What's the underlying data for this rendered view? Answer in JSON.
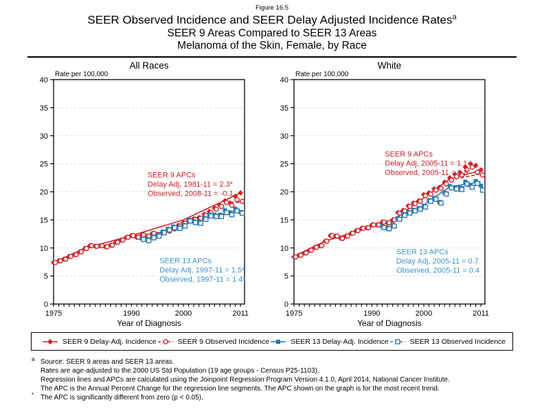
{
  "figure_label": "Figure 16.5",
  "title": {
    "line1": "SEER Observed Incidence and SEER Delay Adjusted Incidence Rates",
    "superscript": "a",
    "line2": "SEER 9 Areas Compared to SEER 13 Areas",
    "line3": "Melanoma of the Skin, Female, by Race"
  },
  "colors": {
    "seer9": "#CE2127",
    "seer13": "#2B77AE",
    "seer13_text": "#3D93C9",
    "grid": "#D9D9D9",
    "axis": "#000000"
  },
  "chart_data": [
    {
      "type": "scatter",
      "title": "All Races",
      "y_axis_label": "Rate per 100,000",
      "xlabel": "Year of Diagnosis",
      "ylim": [
        0,
        40
      ],
      "ytick_step": 5,
      "xrange": [
        1975,
        2011
      ],
      "xticks": [
        1975,
        1990,
        2000,
        2011
      ],
      "grid": "dashed-horizontal",
      "series": [
        {
          "name": "SEER 9 Delay-Adj. Incidence",
          "marker": "diamond-filled",
          "color_key": "seer9",
          "start_year": 1975,
          "values": [
            7.4,
            7.7,
            8.0,
            8.5,
            8.8,
            9.3,
            9.9,
            10.4,
            10.3,
            10.4,
            10.2,
            10.5,
            11.0,
            11.4,
            11.9,
            12.2,
            11.9,
            12.3,
            12.1,
            12.6,
            12.4,
            12.7,
            13.1,
            13.5,
            14.0,
            14.5,
            15.0,
            15.2,
            15.4,
            16.0,
            16.5,
            17.1,
            17.6,
            18.4,
            18.0,
            19.2,
            19.8
          ]
        },
        {
          "name": "SEER 9 Observed Incidence",
          "marker": "circle-open",
          "color_key": "seer9",
          "start_year": 1975,
          "values": [
            7.4,
            7.7,
            8.0,
            8.5,
            8.8,
            9.3,
            9.9,
            10.4,
            10.3,
            10.4,
            10.2,
            10.5,
            11.0,
            11.4,
            11.9,
            12.2,
            11.9,
            12.3,
            12.1,
            12.6,
            12.4,
            12.7,
            13.0,
            13.4,
            13.9,
            14.4,
            14.9,
            15.1,
            15.3,
            15.8,
            16.3,
            16.9,
            17.4,
            18.1,
            17.6,
            18.6,
            18.3
          ]
        },
        {
          "name": "SEER 13 Delay-Adj. Incidence",
          "marker": "square-filled",
          "color_key": "seer13",
          "start_year": 1992,
          "values": [
            11.7,
            11.5,
            12.0,
            12.3,
            12.9,
            13.4,
            13.8,
            13.7,
            14.1,
            15.0,
            14.7,
            14.6,
            15.3,
            16.0,
            15.9,
            15.9,
            16.7,
            16.3,
            17.0,
            16.4
          ]
        },
        {
          "name": "SEER 13 Observed Incidence",
          "marker": "square-open",
          "color_key": "seer13",
          "start_year": 1992,
          "values": [
            11.5,
            11.3,
            11.8,
            12.1,
            12.7,
            13.2,
            13.6,
            13.5,
            13.9,
            14.8,
            14.5,
            14.4,
            15.1,
            15.7,
            15.6,
            15.6,
            16.3,
            15.9,
            16.6,
            16.2
          ]
        }
      ],
      "trend_lines": [
        {
          "color_key": "seer9",
          "style": "solid",
          "points": [
            [
              1975,
              7.45
            ],
            [
              1981,
              9.9
            ],
            [
              1990,
              12.2
            ],
            [
              2000,
              15.0
            ],
            [
              2011,
              19.8
            ]
          ]
        },
        {
          "color_key": "seer9",
          "style": "dashed",
          "points": [
            [
              2008,
              18.2
            ],
            [
              2011,
              18.1
            ]
          ]
        },
        {
          "color_key": "seer13",
          "style": "solid",
          "points": [
            [
              1992,
              11.55
            ],
            [
              1997,
              13.3
            ],
            [
              2004,
              15.2
            ],
            [
              2011,
              16.5
            ]
          ]
        },
        {
          "color_key": "seer13",
          "style": "dashed",
          "points": [
            [
              2004,
              15.4
            ],
            [
              2011,
              16.8
            ]
          ]
        }
      ],
      "annotations": [
        {
          "color_key": "seer9",
          "anchor": [
            1993.1,
            23.7
          ],
          "lines": [
            "SEER 9 APCs",
            "Delay Adj, 1981-11 = 2.3*",
            "Observed, 2008-11 = -0.1"
          ]
        },
        {
          "color_key": "seer13_text",
          "anchor": [
            1995.4,
            8.4
          ],
          "lines": [
            "SEER 13 APCs",
            "Delay Adj, 1997-11 = 1.5*",
            "Observed, 1997-11 = 1.4*"
          ]
        }
      ]
    },
    {
      "type": "scatter",
      "title": "White",
      "y_axis_label": "Rate per 100,000",
      "xlabel": "Year of Diagnosis",
      "ylim": [
        0,
        40
      ],
      "ytick_step": 5,
      "xrange": [
        1975,
        2011
      ],
      "xticks": [
        1975,
        1990,
        2000,
        2011
      ],
      "grid": "dashed-horizontal",
      "series": [
        {
          "name": "SEER 9 Delay-Adj. Incidence",
          "marker": "diamond-filled",
          "color_key": "seer9",
          "start_year": 1975,
          "values": [
            8.4,
            8.7,
            9.1,
            9.6,
            10.1,
            10.4,
            11.2,
            12.2,
            12.1,
            11.7,
            12.1,
            12.6,
            13.1,
            13.5,
            13.6,
            14.1,
            14.1,
            14.6,
            14.5,
            15.0,
            16.3,
            16.7,
            17.5,
            18.0,
            18.4,
            19.5,
            19.8,
            20.5,
            20.8,
            21.7,
            22.5,
            23.1,
            23.4,
            24.4,
            25.0,
            24.7,
            23.9
          ]
        },
        {
          "name": "SEER 9 Observed Incidence",
          "marker": "circle-open",
          "color_key": "seer9",
          "start_year": 1975,
          "values": [
            8.4,
            8.7,
            9.1,
            9.6,
            10.1,
            10.4,
            11.2,
            12.2,
            12.1,
            11.7,
            12.1,
            12.6,
            13.1,
            13.5,
            13.6,
            14.1,
            14.1,
            14.6,
            14.5,
            15.0,
            16.2,
            16.6,
            17.4,
            17.9,
            18.3,
            19.3,
            19.6,
            20.3,
            20.6,
            21.4,
            22.1,
            22.7,
            23.0,
            23.9,
            24.4,
            23.5,
            23.0
          ]
        },
        {
          "name": "SEER 13 Delay-Adj. Incidence",
          "marker": "square-filled",
          "color_key": "seer13",
          "start_year": 1992,
          "values": [
            13.8,
            13.6,
            14.1,
            15.3,
            16.0,
            16.4,
            16.8,
            17.1,
            17.5,
            18.5,
            18.9,
            18.2,
            19.8,
            21.0,
            20.8,
            20.7,
            21.8,
            21.2,
            21.9,
            21.1
          ]
        },
        {
          "name": "SEER 13 Observed Incidence",
          "marker": "square-open",
          "color_key": "seer13",
          "start_year": 1992,
          "values": [
            13.6,
            13.4,
            13.9,
            15.1,
            15.8,
            16.2,
            16.6,
            16.9,
            17.3,
            18.3,
            18.7,
            18.0,
            19.6,
            20.7,
            20.5,
            20.4,
            21.4,
            20.8,
            21.5,
            20.3
          ]
        }
      ],
      "trend_lines": [
        {
          "color_key": "seer9",
          "style": "solid",
          "points": [
            [
              1975,
              8.5
            ],
            [
              1981,
              11.2
            ],
            [
              1994,
              14.9
            ],
            [
              2005,
              22.3
            ],
            [
              2011,
              23.8
            ]
          ]
        },
        {
          "color_key": "seer9",
          "style": "dashed",
          "points": [
            [
              2005,
              22.1
            ],
            [
              2011,
              23.2
            ]
          ]
        },
        {
          "color_key": "seer13",
          "style": "solid",
          "points": [
            [
              1992,
              13.6
            ],
            [
              1999,
              17.0
            ],
            [
              2005,
              20.9
            ],
            [
              2011,
              21.8
            ]
          ]
        },
        {
          "color_key": "seer13",
          "style": "dashed",
          "points": [
            [
              2005,
              20.7
            ],
            [
              2011,
              21.2
            ]
          ]
        }
      ],
      "annotations": [
        {
          "color_key": "seer9",
          "anchor": [
            1992.5,
            27.4
          ],
          "lines": [
            "SEER 9 APCs",
            "Delay Adj, 2005-11 = 1.1",
            "Observed, 2005-11 = 0.8"
          ]
        },
        {
          "color_key": "seer13_text",
          "anchor": [
            1994.7,
            10.0
          ],
          "lines": [
            "SEER 13 APCs",
            "Delay Adj, 2005-11 = 0.7",
            "Observed, 2005-11 = 0.4"
          ]
        }
      ]
    }
  ],
  "legend": {
    "items": [
      {
        "label": "SEER 9 Delay-Adj. Incidence",
        "marker": "diamond-filled",
        "color_key": "seer9"
      },
      {
        "label": "SEER 9 Observed Incidence",
        "marker": "circle-open",
        "color_key": "seer9"
      },
      {
        "label": "SEER 13 Delay-Adj. Incidence",
        "marker": "square-filled",
        "color_key": "seer13"
      },
      {
        "label": "SEER 13 Observed Incidence",
        "marker": "square-open",
        "color_key": "seer13"
      }
    ]
  },
  "footnotes": {
    "marker_a": "a",
    "lines_a": [
      "Source: SEER 9 areas and SEER 13 areas.",
      "Rates are age-adjusted to the 2000 US Std Population (19 age groups - Census P25-1103).",
      "Regression lines and APCs are calculated using the Joinpoint Regression Program Version 4.1.0, April 2014, National Cancer Institute.",
      "The APC is the Annual Percent Change for the regression line segments. The APC shown on the graph is for the most recent trend."
    ],
    "marker_star": "*",
    "line_star": "The APC is significantly different from zero (p < 0.05)."
  }
}
